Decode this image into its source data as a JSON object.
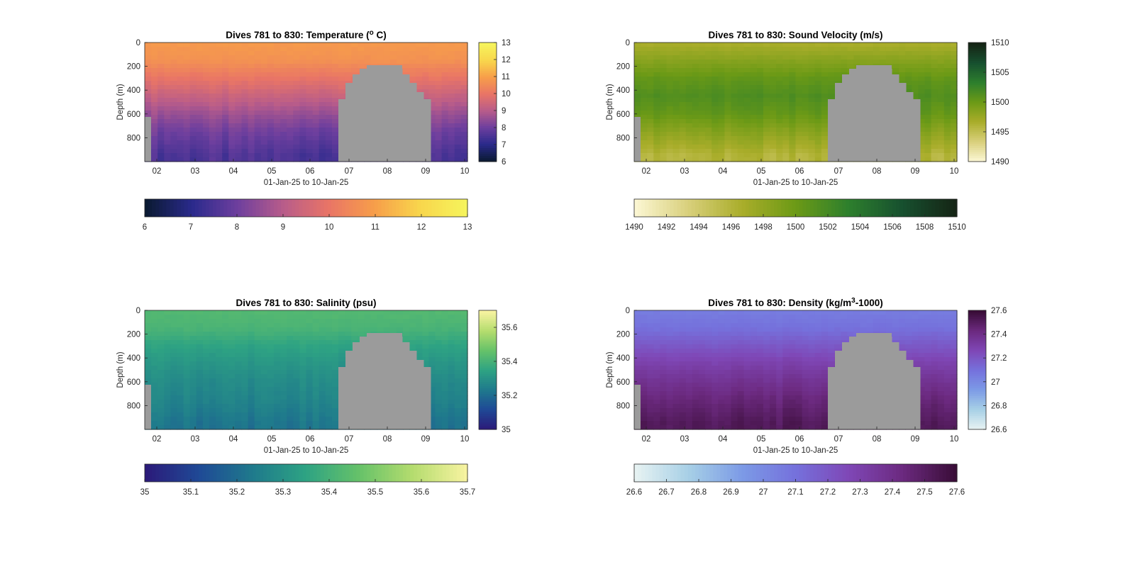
{
  "figure": {
    "panels": [
      {
        "id": "temperature",
        "title_prefix": "Dives 781 to 830: Temperature (",
        "title_sup": "o",
        "title_suffix": " C)",
        "ylabel": "Depth (m)",
        "xlabel": "01-Jan-25 to 10-Jan-25",
        "yticks": [
          "0",
          "200",
          "400",
          "600",
          "800"
        ],
        "xticks": [
          "02",
          "03",
          "04",
          "05",
          "06",
          "07",
          "08",
          "09",
          "10"
        ],
        "colorbar_ticks": [
          "6",
          "7",
          "8",
          "9",
          "10",
          "11",
          "12",
          "13"
        ],
        "colorbar_range": [
          6,
          13
        ],
        "colormap": [
          "#0b1a33",
          "#2a2a8c",
          "#6e3f9e",
          "#b85c8a",
          "#e97566",
          "#f79e4a",
          "#f8d64c",
          "#f6f45c"
        ],
        "horizontal_colorbar_ticks": [
          "6",
          "7",
          "8",
          "9",
          "10",
          "11",
          "12",
          "13"
        ]
      },
      {
        "id": "sound_velocity",
        "title_prefix": "Dives 781 to 830: Sound Velocity (m/s)",
        "title_sup": "",
        "title_suffix": "",
        "ylabel": "Depth (m)",
        "xlabel": "01-Jan-25 to 10-Jan-25",
        "yticks": [
          "0",
          "200",
          "400",
          "600",
          "800"
        ],
        "xticks": [
          "02",
          "03",
          "04",
          "05",
          "06",
          "07",
          "08",
          "09",
          "10"
        ],
        "colorbar_ticks": [
          "1490",
          "1495",
          "1500",
          "1505",
          "1510"
        ],
        "colorbar_range": [
          1490,
          1510
        ],
        "colormap": [
          "#fbf6d2",
          "#d8cf7a",
          "#a9ad2a",
          "#6c9a16",
          "#2d7f2d",
          "#17502f",
          "#152515"
        ],
        "horizontal_colorbar_ticks": [
          "1490",
          "1492",
          "1494",
          "1496",
          "1498",
          "1500",
          "1502",
          "1504",
          "1506",
          "1508",
          "1510"
        ]
      },
      {
        "id": "salinity",
        "title_prefix": "Dives 781 to 830: Salinity (psu)",
        "title_sup": "",
        "title_suffix": "",
        "ylabel": "Depth (m)",
        "xlabel": "01-Jan-25 to 10-Jan-25",
        "yticks": [
          "0",
          "200",
          "400",
          "600",
          "800"
        ],
        "xticks": [
          "02",
          "03",
          "04",
          "05",
          "06",
          "07",
          "08",
          "09",
          "10"
        ],
        "colorbar_ticks": [
          "35",
          "35.2",
          "35.4",
          "35.6"
        ],
        "colorbar_range": [
          35,
          35.7
        ],
        "colormap": [
          "#2b1b7a",
          "#1f4a96",
          "#1f7a8c",
          "#2ea383",
          "#66c269",
          "#b4dc6e",
          "#f7f3a0"
        ],
        "horizontal_colorbar_ticks": [
          "35",
          "35.1",
          "35.2",
          "35.3",
          "35.4",
          "35.5",
          "35.6",
          "35.7"
        ]
      },
      {
        "id": "density",
        "title_prefix": "Dives 781 to 830: Density (kg/m",
        "title_sup": "3",
        "title_suffix": "-1000)",
        "ylabel": "Depth (m)",
        "xlabel": "01-Jan-25 to 10-Jan-25",
        "yticks": [
          "0",
          "200",
          "400",
          "600",
          "800"
        ],
        "xticks": [
          "02",
          "03",
          "04",
          "05",
          "06",
          "07",
          "08",
          "09",
          "10"
        ],
        "colorbar_ticks": [
          "26.6",
          "26.8",
          "27",
          "27.2",
          "27.4",
          "27.6"
        ],
        "colorbar_range": [
          26.6,
          27.6
        ],
        "colormap": [
          "#e6f2f2",
          "#a6cfe6",
          "#7c9ae6",
          "#7571dc",
          "#7f47b6",
          "#6c2a80",
          "#3a0d38"
        ],
        "horizontal_colorbar_ticks": [
          "26.6",
          "26.7",
          "26.8",
          "26.9",
          "27",
          "27.1",
          "27.2",
          "27.3",
          "27.4",
          "27.5",
          "27.6"
        ]
      }
    ],
    "nodata_color": "#9b9b9b"
  },
  "chart_data": [
    {
      "type": "heatmap",
      "title": "Dives 781 to 830: Temperature (o C)",
      "xlabel": "01-Jan-25 to 10-Jan-25",
      "ylabel": "Depth (m)",
      "x_range": [
        "01-Jan-25",
        "10-Jan-25"
      ],
      "ylim": [
        1000,
        0
      ],
      "color_range": [
        6,
        13
      ],
      "depth_profile": {
        "depths": [
          0,
          150,
          300,
          450,
          600,
          750,
          950
        ],
        "values": [
          10.9,
          10.7,
          10.0,
          9.3,
          8.6,
          8.0,
          7.5
        ]
      }
    },
    {
      "type": "heatmap",
      "title": "Dives 781 to 830: Sound Velocity (m/s)",
      "xlabel": "01-Jan-25 to 10-Jan-25",
      "ylabel": "Depth (m)",
      "x_range": [
        "01-Jan-25",
        "10-Jan-25"
      ],
      "ylim": [
        1000,
        0
      ],
      "color_range": [
        1490,
        1510
      ],
      "depth_profile": {
        "depths": [
          0,
          150,
          300,
          450,
          600,
          750,
          950
        ],
        "values": [
          1496.5,
          1498.5,
          1500.5,
          1501.5,
          1500.5,
          1498.5,
          1496.0
        ]
      }
    },
    {
      "type": "heatmap",
      "title": "Dives 781 to 830: Salinity (psu)",
      "xlabel": "01-Jan-25 to 10-Jan-25",
      "ylabel": "Depth (m)",
      "x_range": [
        "01-Jan-25",
        "10-Jan-25"
      ],
      "ylim": [
        1000,
        0
      ],
      "color_range": [
        35,
        35.7
      ],
      "depth_profile": {
        "depths": [
          0,
          150,
          300,
          450,
          600,
          750,
          950
        ],
        "values": [
          35.43,
          35.41,
          35.35,
          35.31,
          35.28,
          35.26,
          35.22
        ]
      }
    },
    {
      "type": "heatmap",
      "title": "Dives 781 to 830: Density (kg/m3-1000)",
      "xlabel": "01-Jan-25 to 10-Jan-25",
      "ylabel": "Depth (m)",
      "x_range": [
        "01-Jan-25",
        "10-Jan-25"
      ],
      "ylim": [
        1000,
        0
      ],
      "color_range": [
        26.6,
        27.6
      ],
      "depth_profile": {
        "depths": [
          0,
          150,
          300,
          450,
          600,
          750,
          950
        ],
        "values": [
          27.05,
          27.1,
          27.2,
          27.3,
          27.38,
          27.45,
          27.52
        ]
      }
    }
  ]
}
